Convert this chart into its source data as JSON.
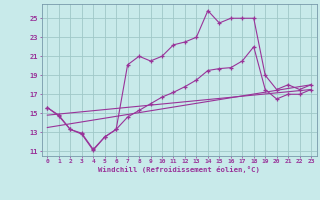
{
  "bg_color": "#c8eaea",
  "line_color": "#993399",
  "grid_color": "#a0c8c8",
  "xlabel": "Windchill (Refroidissement éolien,°C)",
  "xlim": [
    -0.5,
    23.5
  ],
  "ylim": [
    10.5,
    26.5
  ],
  "yticks": [
    11,
    13,
    15,
    17,
    19,
    21,
    23,
    25
  ],
  "xticks": [
    0,
    1,
    2,
    3,
    4,
    5,
    6,
    7,
    8,
    9,
    10,
    11,
    12,
    13,
    14,
    15,
    16,
    17,
    18,
    19,
    20,
    21,
    22,
    23
  ],
  "line1_x": [
    0,
    1,
    2,
    3,
    4,
    5,
    6,
    7,
    8,
    9,
    10,
    11,
    12,
    13,
    14,
    15,
    16,
    17,
    18,
    19,
    20,
    21,
    22,
    23
  ],
  "line1_y": [
    15.6,
    14.8,
    13.3,
    12.8,
    11.1,
    12.5,
    13.3,
    20.1,
    21.0,
    20.5,
    21.0,
    22.2,
    22.5,
    23.0,
    25.8,
    24.5,
    25.0,
    25.0,
    25.0,
    19.0,
    17.5,
    18.0,
    17.5,
    18.0
  ],
  "line2_x": [
    0,
    1,
    2,
    3,
    4,
    5,
    6,
    7,
    8,
    9,
    10,
    11,
    12,
    13,
    14,
    15,
    16,
    17,
    18,
    19,
    20,
    21,
    22,
    23
  ],
  "line2_y": [
    15.6,
    14.7,
    13.3,
    12.9,
    11.2,
    12.5,
    13.3,
    14.6,
    15.3,
    16.0,
    16.7,
    17.2,
    17.8,
    18.5,
    19.5,
    19.7,
    19.8,
    20.5,
    22.0,
    17.5,
    16.5,
    17.0,
    17.0,
    17.5
  ],
  "line3_x": [
    0,
    23
  ],
  "line3_y": [
    13.5,
    18.0
  ],
  "line4_x": [
    0,
    23
  ],
  "line4_y": [
    14.8,
    17.5
  ]
}
